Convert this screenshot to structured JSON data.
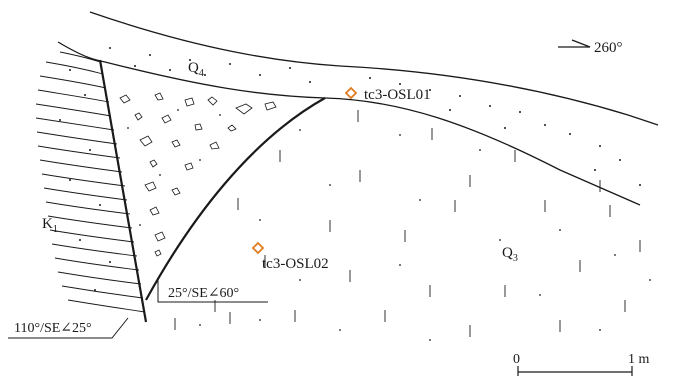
{
  "labels": {
    "orientation": "260°",
    "q4_main": "Q",
    "q4_sub": "4",
    "q3_main": "Q",
    "q3_sub": "3",
    "k1_main": "K",
    "k1_sub": "1",
    "sample_1": "tc3-OSL01",
    "sample_2": "tc3-OSL02",
    "attitude_1": "25°/SE∠60°",
    "attitude_2": "110°/SE∠25°",
    "scale_0": "0",
    "scale_1": "1 m"
  },
  "colors": {
    "line": "#1a1a1a",
    "sample_marker": "#e07b1f",
    "background": "#ffffff"
  },
  "icons": {
    "sample_marker": "diamond-marker-icon",
    "north_arrow": "orientation-arrow-icon"
  }
}
